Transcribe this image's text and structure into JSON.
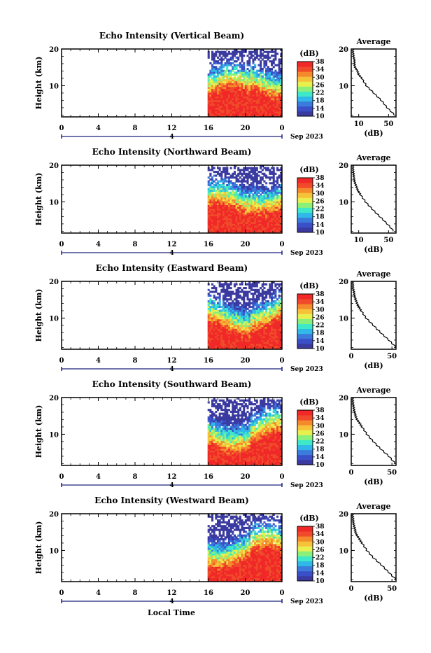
{
  "figure": {
    "xlabel": "Local Time",
    "date_label": "Sep 2023",
    "day_marker": "4",
    "colorbar_unit": "(dB)",
    "colorbar_ticks": [
      "38",
      "34",
      "30",
      "26",
      "22",
      "18",
      "14",
      "10"
    ],
    "colormap": [
      "#3a3aa0",
      "#3b50c8",
      "#3a7bdc",
      "#2fb8e8",
      "#3ee8c8",
      "#8af07a",
      "#e8f050",
      "#f5c23a",
      "#f58a2c",
      "#f04a2a",
      "#f02828"
    ]
  },
  "chart_data": [
    {
      "type": "heatmap",
      "title": "Echo Intensity (Vertical Beam)",
      "ylabel": "Height (km)",
      "x_ticks": [
        "0",
        "4",
        "8",
        "12",
        "16",
        "20",
        "0"
      ],
      "xlim": [
        0,
        24
      ],
      "y_ticks": [
        "20",
        "10"
      ],
      "ylim": [
        1.5,
        20
      ],
      "data_start_hour": 15.9,
      "colorbar_range_db": [
        10,
        38
      ],
      "profile": {
        "title": "Average",
        "xlabel": "(dB)",
        "x_ticks": [
          "10",
          "50"
        ],
        "xlim": [
          0,
          60
        ],
        "heights_km": [
          2,
          4,
          6,
          8,
          10,
          12,
          13,
          14,
          15,
          16,
          17,
          18,
          19,
          20
        ],
        "db": [
          58,
          48,
          40,
          30,
          20,
          14,
          10,
          8,
          5,
          4,
          4,
          3,
          2,
          2
        ]
      }
    },
    {
      "type": "heatmap",
      "title": "Echo Intensity (Northward Beam)",
      "ylabel": "Height (km)",
      "x_ticks": [
        "0",
        "4",
        "8",
        "12",
        "16",
        "20",
        "0"
      ],
      "xlim": [
        0,
        24
      ],
      "y_ticks": [
        "20",
        "10"
      ],
      "ylim": [
        1.5,
        20
      ],
      "data_start_hour": 15.9,
      "colorbar_range_db": [
        10,
        38
      ],
      "profile": {
        "title": "Average",
        "xlabel": "(dB)",
        "x_ticks": [
          "10",
          "50"
        ],
        "xlim": [
          0,
          60
        ],
        "heights_km": [
          2,
          4,
          6,
          8,
          10,
          12,
          13,
          14,
          15,
          16,
          17,
          18,
          19,
          20
        ],
        "db": [
          57,
          48,
          38,
          28,
          19,
          12,
          9,
          7,
          5,
          4,
          3,
          3,
          2,
          2
        ]
      }
    },
    {
      "type": "heatmap",
      "title": "Echo Intensity (Eastward Beam)",
      "ylabel": "Height (km)",
      "x_ticks": [
        "0",
        "4",
        "8",
        "12",
        "16",
        "20",
        "0"
      ],
      "xlim": [
        0,
        24
      ],
      "y_ticks": [
        "20",
        "10"
      ],
      "ylim": [
        1.5,
        20
      ],
      "data_start_hour": 15.9,
      "colorbar_range_db": [
        10,
        38
      ],
      "profile": {
        "title": "Average",
        "xlabel": "(dB)",
        "x_ticks": [
          "0",
          "50"
        ],
        "xlim": [
          0,
          55
        ],
        "heights_km": [
          2,
          4,
          6,
          8,
          10,
          12,
          13,
          14,
          15,
          16,
          17,
          18,
          19,
          20
        ],
        "db": [
          55,
          46,
          36,
          27,
          18,
          12,
          9,
          7,
          5,
          4,
          3,
          2,
          2,
          1
        ]
      }
    },
    {
      "type": "heatmap",
      "title": "Echo Intensity (Southward Beam)",
      "ylabel": "Height (km)",
      "x_ticks": [
        "0",
        "4",
        "8",
        "12",
        "16",
        "20",
        "0"
      ],
      "xlim": [
        0,
        24
      ],
      "y_ticks": [
        "20",
        "10"
      ],
      "ylim": [
        1.5,
        20
      ],
      "data_start_hour": 15.9,
      "colorbar_range_db": [
        10,
        38
      ],
      "profile": {
        "title": "Average",
        "xlabel": "(dB)",
        "x_ticks": [
          "0",
          "50"
        ],
        "xlim": [
          0,
          55
        ],
        "heights_km": [
          2,
          4,
          6,
          8,
          10,
          12,
          13,
          14,
          15,
          16,
          17,
          18,
          19,
          20
        ],
        "db": [
          54,
          46,
          36,
          27,
          19,
          13,
          10,
          7,
          5,
          4,
          3,
          2,
          2,
          1
        ]
      }
    },
    {
      "type": "heatmap",
      "title": "Echo Intensity (Westward Beam)",
      "ylabel": "Height (km)",
      "x_ticks": [
        "0",
        "4",
        "8",
        "12",
        "16",
        "20",
        "0"
      ],
      "xlim": [
        0,
        24
      ],
      "y_ticks": [
        "20",
        "10"
      ],
      "ylim": [
        1.5,
        20
      ],
      "data_start_hour": 15.9,
      "colorbar_range_db": [
        10,
        38
      ],
      "profile": {
        "title": "Average",
        "xlabel": "(dB)",
        "x_ticks": [
          "0",
          "50"
        ],
        "xlim": [
          0,
          55
        ],
        "heights_km": [
          2,
          4,
          6,
          8,
          10,
          12,
          13,
          14,
          15,
          16,
          17,
          18,
          19,
          20
        ],
        "db": [
          55,
          46,
          37,
          27,
          19,
          13,
          10,
          7,
          5,
          4,
          3,
          2,
          2,
          1
        ]
      }
    }
  ]
}
